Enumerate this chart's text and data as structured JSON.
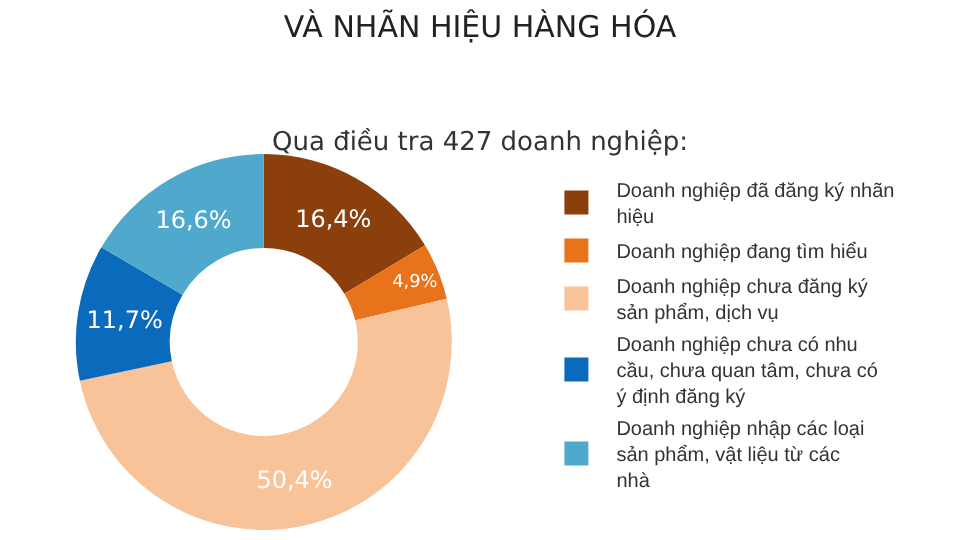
{
  "chart_data": {
    "type": "donut",
    "title": "VÀ NHÃN HIỆU HÀNG HÓA",
    "subtitle": "Qua điều tra 427 doanh nghiệp:",
    "categories": [
      "Doanh nghiệp đã đăng ký nhãn hiệu",
      "Doanh nghiệp đang tìm hiểu",
      "Doanh nghiệp chưa đăng ký sản phẩm, dịch vụ",
      "Doanh nghiệp chưa có nhu cầu, chưa quan tâm, chưa có ý định đăng ký",
      "Doanh nghiệp nhập các loại sản phẩm, vật liệu từ các nhà"
    ],
    "values": [
      16.4,
      4.9,
      50.4,
      11.7,
      16.6
    ],
    "colors": [
      "#8b3f0c",
      "#e8731a",
      "#f9c39a",
      "#0a6bbd",
      "#4fa9cc"
    ],
    "value_labels": [
      "16,4%",
      "4,9%",
      "50,4%",
      "11,7%",
      "16,6%"
    ],
    "legend": "right"
  }
}
